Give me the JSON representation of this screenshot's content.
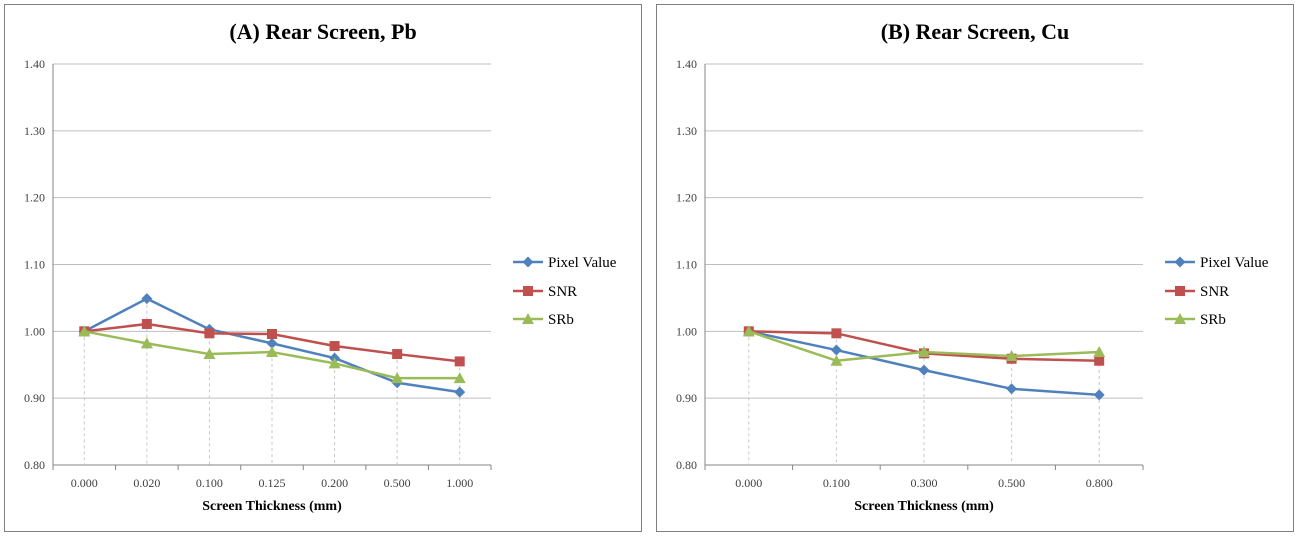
{
  "chart_data": [
    {
      "type": "line",
      "title": "(A) Rear Screen, Pb",
      "xlabel": "Screen Thickness (mm)",
      "ylabel": "",
      "ylim": [
        0.8,
        1.4
      ],
      "yticks": [
        "0.80",
        "0.90",
        "1.00",
        "1.10",
        "1.20",
        "1.30",
        "1.40"
      ],
      "categories": [
        "0.000",
        "0.020",
        "0.100",
        "0.125",
        "0.200",
        "0.500",
        "1.000"
      ],
      "grid": "horizontal",
      "legend": "right",
      "series": [
        {
          "name": "Pixel Value",
          "color": "#4f81bd",
          "marker": "diamond",
          "values": [
            1.0,
            1.049,
            1.003,
            0.982,
            0.96,
            0.923,
            0.909
          ]
        },
        {
          "name": "SNR",
          "color": "#c0504d",
          "marker": "square",
          "values": [
            1.0,
            1.011,
            0.997,
            0.996,
            0.978,
            0.966,
            0.955
          ]
        },
        {
          "name": "SRb",
          "color": "#9bbb59",
          "marker": "triangle",
          "values": [
            1.0,
            0.982,
            0.966,
            0.969,
            0.952,
            0.93,
            0.93
          ]
        }
      ]
    },
    {
      "type": "line",
      "title": "(B) Rear Screen, Cu",
      "xlabel": "Screen Thickness (mm)",
      "ylabel": "",
      "ylim": [
        0.8,
        1.4
      ],
      "yticks": [
        "0.80",
        "0.90",
        "1.00",
        "1.10",
        "1.20",
        "1.30",
        "1.40"
      ],
      "categories": [
        "0.000",
        "0.100",
        "0.300",
        "0.500",
        "0.800"
      ],
      "grid": "horizontal",
      "legend": "right",
      "series": [
        {
          "name": "Pixel Value",
          "color": "#4f81bd",
          "marker": "diamond",
          "values": [
            1.0,
            0.972,
            0.942,
            0.914,
            0.905
          ]
        },
        {
          "name": "SNR",
          "color": "#c0504d",
          "marker": "square",
          "values": [
            1.0,
            0.997,
            0.967,
            0.959,
            0.956
          ]
        },
        {
          "name": "SRb",
          "color": "#9bbb59",
          "marker": "triangle",
          "values": [
            1.0,
            0.956,
            0.969,
            0.963,
            0.969
          ]
        }
      ]
    }
  ]
}
